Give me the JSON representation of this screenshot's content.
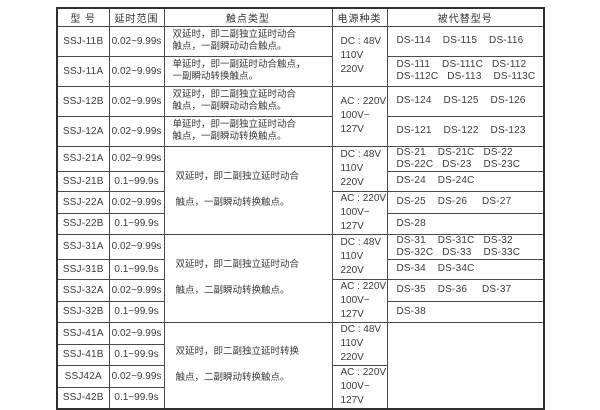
{
  "colors": {
    "background": "#ffffff",
    "outer_border": "#2f2f2f",
    "inner_border": "#4a4a4a",
    "text": "#3a3a3a"
  },
  "table": {
    "headers": [
      {
        "label": "型 号"
      },
      {
        "label": "延时范围"
      },
      {
        "label": "触点类型"
      },
      {
        "label": "电源种类"
      },
      {
        "label": "被代替型号"
      }
    ],
    "rows": [
      {
        "model": "SSJ-11B",
        "range": "0.02~9.99s"
      },
      {
        "model": "SSJ-11A",
        "range": "0.02~9.99s"
      },
      {
        "model": "SSJ-12B",
        "range": "0.02~9.99s"
      },
      {
        "model": "SSJ-12A",
        "range": "0.02~9.99s"
      },
      {
        "model": "SSJ-21A",
        "range": "0.02~9.99s"
      },
      {
        "model": "SSJ-21B",
        "range": "0.1~99.9s"
      },
      {
        "model": "SSJ-22A",
        "range": "0.02~9.99s"
      },
      {
        "model": "SSJ-22B",
        "range": "0.1~99.9s"
      },
      {
        "model": "SSJ-31A",
        "range": "0.02~9.99s"
      },
      {
        "model": "SSJ-31B",
        "range": "0.1~99.9s"
      },
      {
        "model": "SSJ-32A",
        "range": "0.02~9.99s"
      },
      {
        "model": "SSJ-32B",
        "range": "0.1~99.9s"
      },
      {
        "model": "SSJ-41A",
        "range": "0.02~9.99s"
      },
      {
        "model": "SSJ-41B",
        "range": "0.1~99.9s"
      },
      {
        "model": "SSJ42A",
        "range": "0.02~9.99s"
      },
      {
        "model": "SSJ-42B",
        "range": "0.1~99.9s"
      }
    ],
    "contacts": {
      "c11b": "双延时，即二副独立延时动合\n触点，一副瞬动动合触点。",
      "c11a": "单延时，即一副延时动合触点，\n一副瞬动转换触点。",
      "c12b": "双延时，即二副独立延时动合\n触点，一副瞬动动合触点。",
      "c12a": "单延时，即一副独立延时动合\n触点，一副瞬动转换触点。",
      "g21": "双延时，即二副独立延时动合\n触点，一副瞬动转换触点。",
      "g31": "双延时，即二副独立延时动合\n触点，二副瞬动转换触点。",
      "g41": "双延时，即二副独立延时转换\n触点，二副瞬动转换触点。"
    },
    "power": {
      "dc": "DC : 48V\n110V\n220V",
      "ac": "AC : 220V\n100V~\n127V"
    },
    "replaced": {
      "r11b": "DS-114    DS-115    DS-116",
      "r11a": "DS-111    DS-111C   DS-112\nDS-112C   DS-113    DS-113C",
      "r12b": "DS-124    DS-125    DS-126",
      "r12a": "DS-121    DS-122    DS-123",
      "r21a": "DS-21    DS-21C   DS-22\nDS-22C   DS-23    DS-23C",
      "r21b": "DS-24    DS-24C",
      "r22a": "DS-25    DS-26     DS-27",
      "r22b": "DS-28",
      "r31a": "DS-31    DS-31C   DS-32\nDS-32C   DS-33    DS-33C",
      "r31b": "DS-34    DS-34C",
      "r32a": "DS-35    DS-36     DS-37",
      "r32b": "DS-38",
      "g41": ""
    }
  }
}
